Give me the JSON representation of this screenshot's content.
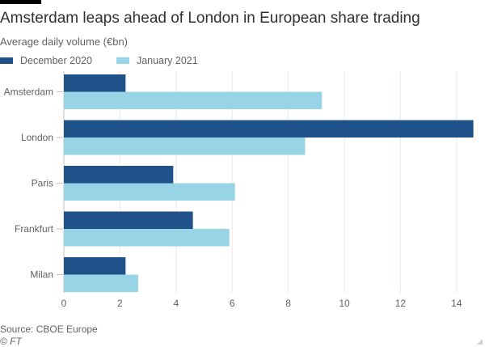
{
  "chart_data": {
    "type": "bar",
    "orientation": "horizontal",
    "title": "Amsterdam leaps ahead of London in European share trading",
    "subtitle": "Average daily volume (€bn)",
    "categories": [
      "Amsterdam",
      "London",
      "Paris",
      "Frankfurt",
      "Milan"
    ],
    "series": [
      {
        "name": "December 2020",
        "color": "#1e5289",
        "values": [
          2.2,
          14.6,
          3.9,
          4.6,
          2.2
        ]
      },
      {
        "name": "January 2021",
        "color": "#96d4e6",
        "values": [
          9.2,
          8.6,
          6.1,
          5.9,
          2.65
        ]
      }
    ],
    "xlim": [
      0,
      14.6
    ],
    "xticks": [
      0,
      2,
      4,
      6,
      8,
      10,
      12,
      14
    ],
    "xtick_labels": [
      "0",
      "2",
      "4",
      "6",
      "8",
      "10",
      "12",
      "14"
    ],
    "grid": true,
    "legend_position": "top-left",
    "source": "Source: CBOE Europe",
    "copyright": "© FT"
  }
}
